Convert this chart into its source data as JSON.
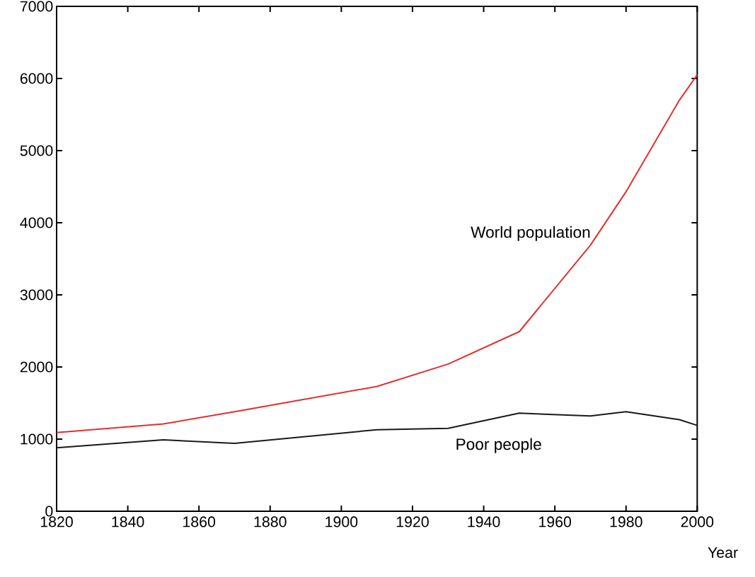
{
  "chart_data": {
    "type": "line",
    "xlabel": "Year",
    "x": [
      1820,
      1850,
      1870,
      1910,
      1930,
      1950,
      1970,
      1980,
      1995,
      2000
    ],
    "series": [
      {
        "name": "World population",
        "color": "#e03030",
        "values": [
          1090,
          1210,
          1380,
          1730,
          2040,
          2490,
          3690,
          4430,
          5700,
          6050
        ]
      },
      {
        "name": "Poor people",
        "color": "#1a1a1a",
        "values": [
          880,
          990,
          940,
          1130,
          1150,
          1360,
          1320,
          1380,
          1270,
          1190
        ]
      }
    ],
    "xlim": [
      1820,
      2000
    ],
    "xticks": [
      1820,
      1840,
      1860,
      1880,
      1900,
      1920,
      1940,
      1960,
      1980,
      2000
    ],
    "ylim": [
      0,
      7000
    ],
    "yticks": [
      0,
      1000,
      2000,
      3000,
      4000,
      5000,
      6000,
      7000
    ],
    "grid": false,
    "legend": false,
    "marker": "none",
    "line_style": "solid"
  }
}
